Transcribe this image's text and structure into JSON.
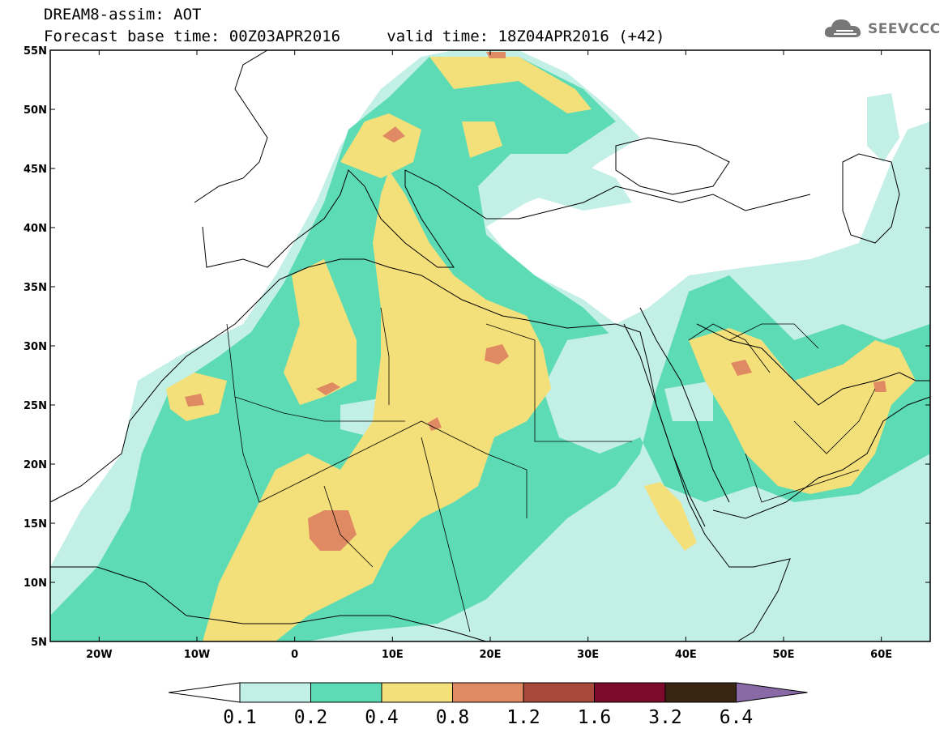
{
  "header": {
    "title": "DREAM8-assim: AOT",
    "base_time": "Forecast base time: 00Z03APR2016",
    "valid_time": "valid time: 18Z04APR2016 (+42)"
  },
  "logo": {
    "text": "SEEVCCC",
    "icon": "cloud-icon"
  },
  "map": {
    "lon_range": [
      -25,
      65
    ],
    "lat_range": [
      5,
      55
    ],
    "lat_ticks": [
      {
        "v": 55,
        "label": "55N"
      },
      {
        "v": 50,
        "label": "50N"
      },
      {
        "v": 45,
        "label": "45N"
      },
      {
        "v": 40,
        "label": "40N"
      },
      {
        "v": 35,
        "label": "35N"
      },
      {
        "v": 30,
        "label": "30N"
      },
      {
        "v": 25,
        "label": "25N"
      },
      {
        "v": 20,
        "label": "20N"
      },
      {
        "v": 15,
        "label": "15N"
      },
      {
        "v": 10,
        "label": "10N"
      },
      {
        "v": 5,
        "label": "5N"
      }
    ],
    "lon_ticks": [
      {
        "v": -20,
        "label": "20W"
      },
      {
        "v": -10,
        "label": "10W"
      },
      {
        "v": 0,
        "label": "0"
      },
      {
        "v": 10,
        "label": "10E"
      },
      {
        "v": 20,
        "label": "20E"
      },
      {
        "v": 30,
        "label": "30E"
      },
      {
        "v": 40,
        "label": "40E"
      },
      {
        "v": 50,
        "label": "50E"
      },
      {
        "v": 60,
        "label": "60E"
      }
    ]
  },
  "colorbar": {
    "labels": [
      "0.1",
      "0.2",
      "0.4",
      "0.8",
      "1.2",
      "1.6",
      "3.2",
      "6.4"
    ],
    "colors": [
      "#c2efe6",
      "#5ddbb5",
      "#f4e07a",
      "#e08a63",
      "#a6483a",
      "#7b0a2b",
      "#3a2412"
    ],
    "under_color": "#ffffff",
    "over_color": "#8a6aa6"
  }
}
